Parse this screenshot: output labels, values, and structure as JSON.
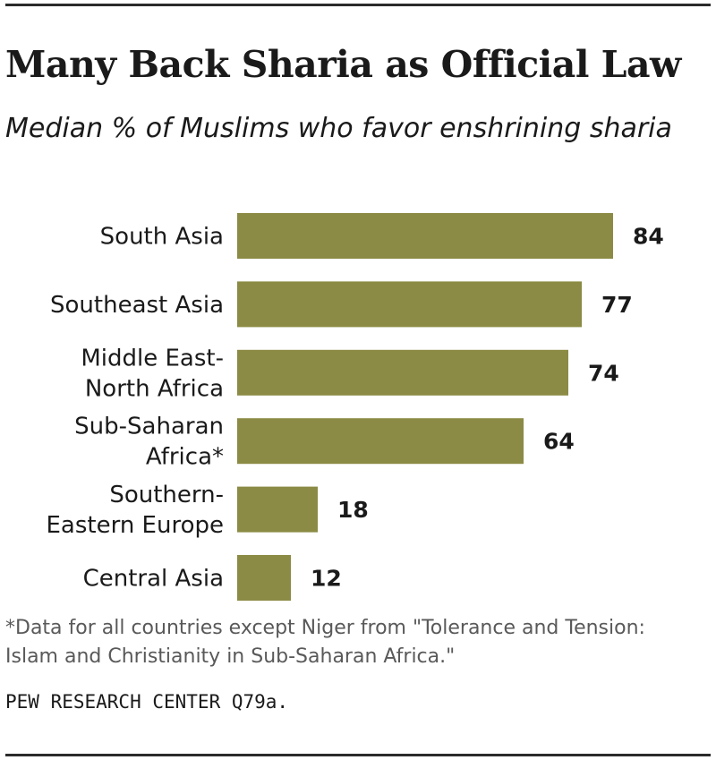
{
  "chart_data": {
    "type": "bar",
    "orientation": "horizontal",
    "title": "Many Back Sharia as Official Law",
    "subtitle": "Median % of Muslims who favor enshrining sharia",
    "categories": [
      [
        "South Asia"
      ],
      [
        "Southeast Asia"
      ],
      [
        "Middle East-",
        "North Africa"
      ],
      [
        "Sub-Saharan",
        "Africa*"
      ],
      [
        "Southern-",
        "Eastern Europe"
      ],
      [
        "Central Asia"
      ]
    ],
    "values": [
      84,
      77,
      74,
      64,
      18,
      12
    ],
    "xlim": [
      0,
      100
    ],
    "grid": false,
    "legend": "none",
    "bar_color": "#8b8b45",
    "footnote": "*Data for all countries except Niger from \"Tolerance and Tension: Islam and Christianity in Sub-Saharan Africa.\"",
    "source": "PEW RESEARCH  CENTER Q79a."
  }
}
